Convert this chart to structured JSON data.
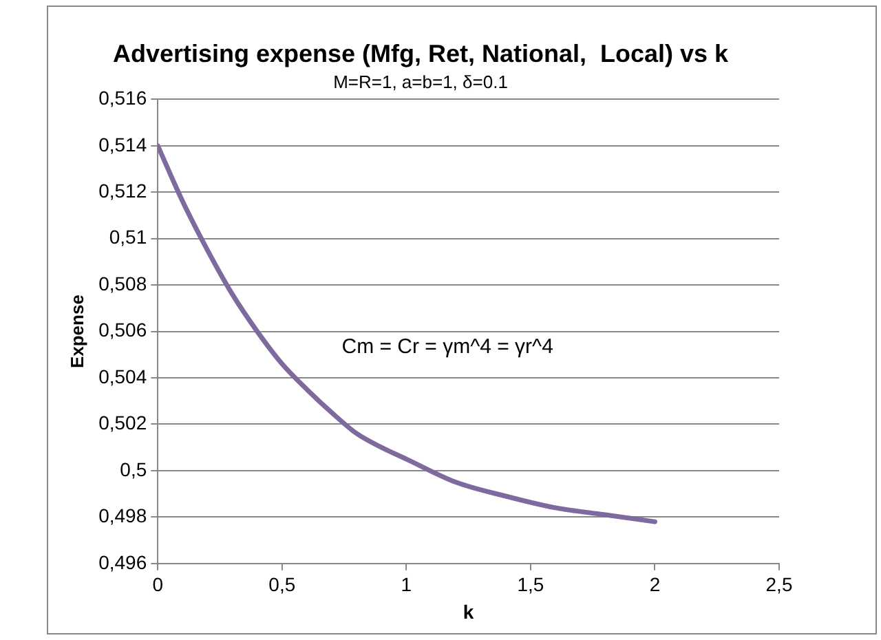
{
  "chart_data": {
    "type": "line",
    "title": "Advertising expense (Mfg, Ret, National,  Local) vs k",
    "subtitle": "M=R=1, a=b=1, δ=0.1",
    "xlabel": "k",
    "ylabel": "Expense",
    "x": [
      0,
      0.1,
      0.2,
      0.3,
      0.4,
      0.5,
      0.6,
      0.7,
      0.8,
      0.9,
      1.0,
      1.2,
      1.4,
      1.6,
      1.8,
      2.0
    ],
    "series": [
      {
        "color": "#7f6a9f",
        "values": [
          0.514,
          0.5116,
          0.5095,
          0.5076,
          0.506,
          0.5046,
          0.5035,
          0.5025,
          0.5016,
          0.501,
          0.5005,
          0.4995,
          0.4989,
          0.4984,
          0.4981,
          0.4978
        ]
      }
    ],
    "xlim": [
      0,
      2.5
    ],
    "xticks": [
      0,
      {
        "value": 0.5,
        "label": "0,5"
      },
      1,
      {
        "value": 1.5,
        "label": "1,5"
      },
      2,
      {
        "value": 2.5,
        "label": "2,5"
      }
    ],
    "ylim": [
      0.496,
      0.516
    ],
    "yticks": [
      {
        "value": 0.496,
        "label": "0,496"
      },
      {
        "value": 0.498,
        "label": "0,498"
      },
      {
        "value": 0.5,
        "label": "0,5"
      },
      {
        "value": 0.502,
        "label": "0,502"
      },
      {
        "value": 0.504,
        "label": "0,504"
      },
      {
        "value": 0.506,
        "label": "0,506"
      },
      {
        "value": 0.508,
        "label": "0,508"
      },
      {
        "value": 0.51,
        "label": "0,51"
      },
      {
        "value": 0.512,
        "label": "0,512"
      },
      {
        "value": 0.514,
        "label": "0,514"
      },
      {
        "value": 0.516,
        "label": "0,516"
      }
    ],
    "grid": "y",
    "marker": "none",
    "line_style": "solid",
    "legend": false,
    "annotations": [
      "Cm = Cr = γm^4 = γr^4"
    ]
  }
}
